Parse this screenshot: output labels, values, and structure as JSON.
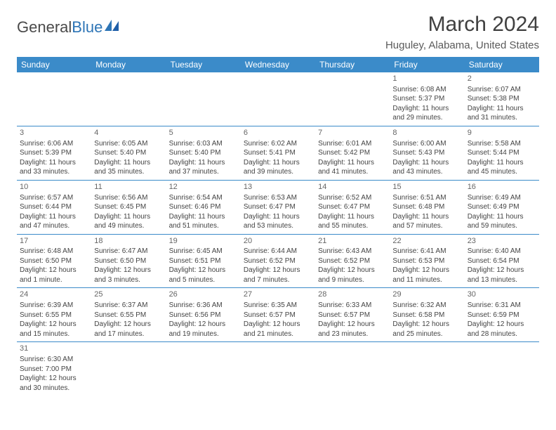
{
  "logo": {
    "text1": "General",
    "text2": "Blue"
  },
  "title": "March 2024",
  "location": "Huguley, Alabama, United States",
  "colors": {
    "header_bg": "#3b8bc9",
    "header_text": "#ffffff",
    "border": "#3b8bc9",
    "body_text": "#444444",
    "logo_blue": "#2e75b6"
  },
  "weekdays": [
    "Sunday",
    "Monday",
    "Tuesday",
    "Wednesday",
    "Thursday",
    "Friday",
    "Saturday"
  ],
  "weeks": [
    [
      null,
      null,
      null,
      null,
      null,
      {
        "day": "1",
        "sunrise": "Sunrise: 6:08 AM",
        "sunset": "Sunset: 5:37 PM",
        "daylight": "Daylight: 11 hours and 29 minutes."
      },
      {
        "day": "2",
        "sunrise": "Sunrise: 6:07 AM",
        "sunset": "Sunset: 5:38 PM",
        "daylight": "Daylight: 11 hours and 31 minutes."
      }
    ],
    [
      {
        "day": "3",
        "sunrise": "Sunrise: 6:06 AM",
        "sunset": "Sunset: 5:39 PM",
        "daylight": "Daylight: 11 hours and 33 minutes."
      },
      {
        "day": "4",
        "sunrise": "Sunrise: 6:05 AM",
        "sunset": "Sunset: 5:40 PM",
        "daylight": "Daylight: 11 hours and 35 minutes."
      },
      {
        "day": "5",
        "sunrise": "Sunrise: 6:03 AM",
        "sunset": "Sunset: 5:40 PM",
        "daylight": "Daylight: 11 hours and 37 minutes."
      },
      {
        "day": "6",
        "sunrise": "Sunrise: 6:02 AM",
        "sunset": "Sunset: 5:41 PM",
        "daylight": "Daylight: 11 hours and 39 minutes."
      },
      {
        "day": "7",
        "sunrise": "Sunrise: 6:01 AM",
        "sunset": "Sunset: 5:42 PM",
        "daylight": "Daylight: 11 hours and 41 minutes."
      },
      {
        "day": "8",
        "sunrise": "Sunrise: 6:00 AM",
        "sunset": "Sunset: 5:43 PM",
        "daylight": "Daylight: 11 hours and 43 minutes."
      },
      {
        "day": "9",
        "sunrise": "Sunrise: 5:58 AM",
        "sunset": "Sunset: 5:44 PM",
        "daylight": "Daylight: 11 hours and 45 minutes."
      }
    ],
    [
      {
        "day": "10",
        "sunrise": "Sunrise: 6:57 AM",
        "sunset": "Sunset: 6:44 PM",
        "daylight": "Daylight: 11 hours and 47 minutes."
      },
      {
        "day": "11",
        "sunrise": "Sunrise: 6:56 AM",
        "sunset": "Sunset: 6:45 PM",
        "daylight": "Daylight: 11 hours and 49 minutes."
      },
      {
        "day": "12",
        "sunrise": "Sunrise: 6:54 AM",
        "sunset": "Sunset: 6:46 PM",
        "daylight": "Daylight: 11 hours and 51 minutes."
      },
      {
        "day": "13",
        "sunrise": "Sunrise: 6:53 AM",
        "sunset": "Sunset: 6:47 PM",
        "daylight": "Daylight: 11 hours and 53 minutes."
      },
      {
        "day": "14",
        "sunrise": "Sunrise: 6:52 AM",
        "sunset": "Sunset: 6:47 PM",
        "daylight": "Daylight: 11 hours and 55 minutes."
      },
      {
        "day": "15",
        "sunrise": "Sunrise: 6:51 AM",
        "sunset": "Sunset: 6:48 PM",
        "daylight": "Daylight: 11 hours and 57 minutes."
      },
      {
        "day": "16",
        "sunrise": "Sunrise: 6:49 AM",
        "sunset": "Sunset: 6:49 PM",
        "daylight": "Daylight: 11 hours and 59 minutes."
      }
    ],
    [
      {
        "day": "17",
        "sunrise": "Sunrise: 6:48 AM",
        "sunset": "Sunset: 6:50 PM",
        "daylight": "Daylight: 12 hours and 1 minute."
      },
      {
        "day": "18",
        "sunrise": "Sunrise: 6:47 AM",
        "sunset": "Sunset: 6:50 PM",
        "daylight": "Daylight: 12 hours and 3 minutes."
      },
      {
        "day": "19",
        "sunrise": "Sunrise: 6:45 AM",
        "sunset": "Sunset: 6:51 PM",
        "daylight": "Daylight: 12 hours and 5 minutes."
      },
      {
        "day": "20",
        "sunrise": "Sunrise: 6:44 AM",
        "sunset": "Sunset: 6:52 PM",
        "daylight": "Daylight: 12 hours and 7 minutes."
      },
      {
        "day": "21",
        "sunrise": "Sunrise: 6:43 AM",
        "sunset": "Sunset: 6:52 PM",
        "daylight": "Daylight: 12 hours and 9 minutes."
      },
      {
        "day": "22",
        "sunrise": "Sunrise: 6:41 AM",
        "sunset": "Sunset: 6:53 PM",
        "daylight": "Daylight: 12 hours and 11 minutes."
      },
      {
        "day": "23",
        "sunrise": "Sunrise: 6:40 AM",
        "sunset": "Sunset: 6:54 PM",
        "daylight": "Daylight: 12 hours and 13 minutes."
      }
    ],
    [
      {
        "day": "24",
        "sunrise": "Sunrise: 6:39 AM",
        "sunset": "Sunset: 6:55 PM",
        "daylight": "Daylight: 12 hours and 15 minutes."
      },
      {
        "day": "25",
        "sunrise": "Sunrise: 6:37 AM",
        "sunset": "Sunset: 6:55 PM",
        "daylight": "Daylight: 12 hours and 17 minutes."
      },
      {
        "day": "26",
        "sunrise": "Sunrise: 6:36 AM",
        "sunset": "Sunset: 6:56 PM",
        "daylight": "Daylight: 12 hours and 19 minutes."
      },
      {
        "day": "27",
        "sunrise": "Sunrise: 6:35 AM",
        "sunset": "Sunset: 6:57 PM",
        "daylight": "Daylight: 12 hours and 21 minutes."
      },
      {
        "day": "28",
        "sunrise": "Sunrise: 6:33 AM",
        "sunset": "Sunset: 6:57 PM",
        "daylight": "Daylight: 12 hours and 23 minutes."
      },
      {
        "day": "29",
        "sunrise": "Sunrise: 6:32 AM",
        "sunset": "Sunset: 6:58 PM",
        "daylight": "Daylight: 12 hours and 25 minutes."
      },
      {
        "day": "30",
        "sunrise": "Sunrise: 6:31 AM",
        "sunset": "Sunset: 6:59 PM",
        "daylight": "Daylight: 12 hours and 28 minutes."
      }
    ],
    [
      {
        "day": "31",
        "sunrise": "Sunrise: 6:30 AM",
        "sunset": "Sunset: 7:00 PM",
        "daylight": "Daylight: 12 hours and 30 minutes."
      },
      null,
      null,
      null,
      null,
      null,
      null
    ]
  ]
}
